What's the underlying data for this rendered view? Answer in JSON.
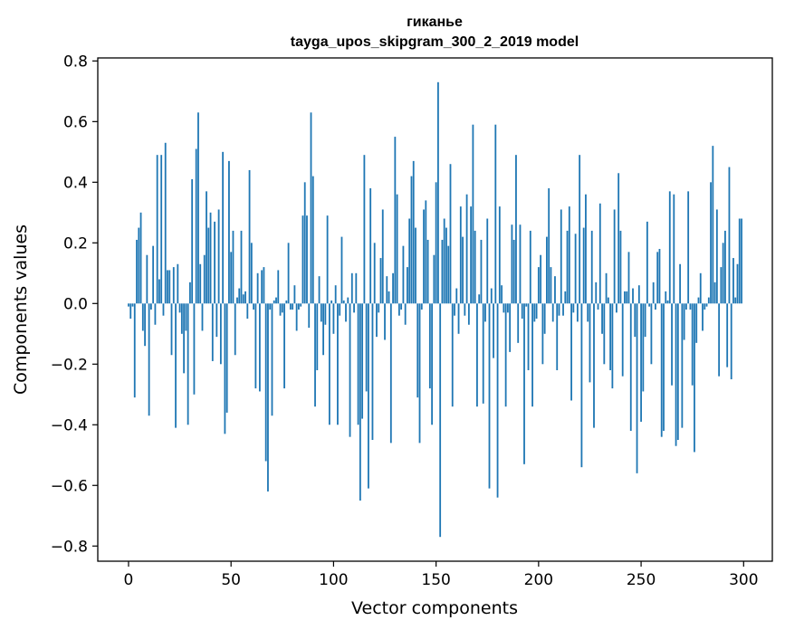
{
  "chart_data": {
    "type": "bar",
    "title": "гиканье",
    "subtitle": "tayga_upos_skipgram_300_2_2019 model",
    "xlabel": "Vector components",
    "ylabel": "Components values",
    "xlim": [
      -15,
      314
    ],
    "ylim": [
      -0.85,
      0.81
    ],
    "xticks": [
      0,
      50,
      100,
      150,
      200,
      250,
      300
    ],
    "yticks": [
      -0.8,
      -0.6,
      -0.4,
      -0.2,
      0.0,
      0.2,
      0.4,
      0.6,
      0.8
    ],
    "xtick_labels": [
      "0",
      "50",
      "100",
      "150",
      "200",
      "250",
      "300"
    ],
    "ytick_labels": [
      "−0.8",
      "−0.6",
      "−0.4",
      "−0.2",
      "0.0",
      "0.2",
      "0.4",
      "0.6",
      "0.8"
    ],
    "bar_color": "#1f77b4",
    "grid": false,
    "series": [
      {
        "values": [
          -0.01,
          -0.05,
          -0.01,
          -0.31,
          0.21,
          0.25,
          0.3,
          -0.09,
          -0.14,
          0.16,
          -0.37,
          -0.02,
          0.19,
          -0.07,
          0.49,
          0.08,
          0.49,
          -0.04,
          0.53,
          0.11,
          0.11,
          -0.17,
          0.12,
          -0.41,
          0.13,
          -0.03,
          -0.1,
          -0.23,
          -0.09,
          -0.4,
          0.07,
          0.41,
          -0.3,
          0.51,
          0.63,
          0.13,
          -0.09,
          0.16,
          0.37,
          0.25,
          0.3,
          -0.19,
          0.27,
          -0.11,
          0.31,
          -0.2,
          0.5,
          -0.43,
          -0.36,
          0.47,
          0.17,
          0.24,
          -0.17,
          0.02,
          0.05,
          0.24,
          0.03,
          0.04,
          -0.05,
          0.44,
          0.2,
          -0.02,
          -0.28,
          0.1,
          -0.29,
          0.11,
          0.12,
          -0.52,
          -0.62,
          -0.02,
          -0.37,
          0.01,
          0.02,
          0.11,
          -0.04,
          -0.03,
          -0.28,
          0.01,
          0.2,
          -0.02,
          -0.02,
          0.06,
          -0.09,
          -0.02,
          -0.01,
          0.29,
          0.4,
          0.29,
          -0.08,
          0.63,
          0.42,
          -0.34,
          -0.22,
          0.09,
          -0.06,
          -0.17,
          -0.07,
          0.29,
          -0.4,
          0.01,
          -0.1,
          0.06,
          -0.4,
          -0.04,
          0.22,
          0.01,
          -0.06,
          0.02,
          -0.44,
          0.1,
          -0.03,
          0.1,
          -0.4,
          -0.65,
          -0.38,
          0.49,
          -0.29,
          -0.61,
          0.38,
          -0.45,
          0.2,
          -0.11,
          -0.03,
          0.15,
          0.31,
          -0.12,
          0.09,
          0.04,
          -0.46,
          0.1,
          0.55,
          0.36,
          -0.04,
          -0.02,
          0.19,
          -0.07,
          0.12,
          0.28,
          0.42,
          0.47,
          0.25,
          -0.31,
          -0.46,
          -0.02,
          0.31,
          0.34,
          0.21,
          -0.28,
          -0.4,
          0.16,
          0.4,
          0.73,
          -0.77,
          0.21,
          0.28,
          0.25,
          0.19,
          0.46,
          -0.34,
          -0.04,
          0.05,
          -0.1,
          0.32,
          0.22,
          -0.04,
          0.36,
          -0.07,
          0.32,
          0.59,
          0.24,
          -0.34,
          0.03,
          0.21,
          -0.33,
          -0.06,
          0.28,
          -0.61,
          0.05,
          -0.18,
          0.59,
          -0.64,
          0.32,
          0.06,
          -0.03,
          -0.34,
          -0.03,
          -0.16,
          0.26,
          0.21,
          0.49,
          -0.13,
          0.26,
          -0.05,
          -0.53,
          -0.01,
          -0.22,
          0.24,
          -0.34,
          -0.06,
          -0.05,
          0.12,
          0.16,
          -0.2,
          -0.1,
          0.22,
          0.38,
          0.12,
          -0.06,
          0.09,
          -0.22,
          -0.04,
          0.31,
          -0.04,
          0.04,
          0.24,
          0.32,
          -0.32,
          -0.03,
          0.23,
          -0.06,
          0.49,
          -0.54,
          0.25,
          0.36,
          -0.06,
          -0.26,
          0.24,
          -0.41,
          0.07,
          -0.02,
          0.33,
          -0.1,
          -0.2,
          0.1,
          0.02,
          -0.22,
          -0.28,
          0.31,
          -0.03,
          0.43,
          0.24,
          -0.24,
          0.04,
          0.04,
          0.17,
          -0.42,
          0.05,
          -0.11,
          -0.56,
          0.06,
          -0.39,
          -0.29,
          -0.11,
          0.27,
          -0.01,
          -0.2,
          0.07,
          -0.02,
          0.17,
          0.18,
          -0.44,
          -0.42,
          0.04,
          0.01,
          0.37,
          -0.27,
          0.36,
          -0.47,
          -0.45,
          0.13,
          -0.41,
          -0.12,
          -0.02,
          0.37,
          -0.02,
          -0.27,
          -0.49,
          -0.13,
          0.02,
          0.1,
          -0.09,
          -0.02,
          -0.01,
          0.02,
          0.4,
          0.52,
          0.07,
          0.31,
          -0.24,
          0.12,
          0.2,
          0.24,
          -0.21,
          0.45,
          -0.25,
          0.15,
          0.02,
          0.13,
          0.28,
          0.28
        ]
      }
    ]
  }
}
